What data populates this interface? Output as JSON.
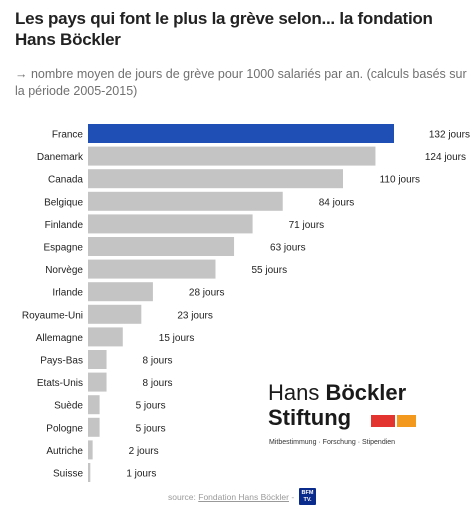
{
  "header": {
    "title": "Les pays qui font le plus la grève selon... la fondation Hans Böckler",
    "subtitle": "→ nombre moyen de jours de grève pour 1000 salariés par an. (calculs basés sur la période 2005-2015)"
  },
  "colors": {
    "highlight_bar": "#1f4fb4",
    "bar": "#c4c4c4",
    "logo_red": "#e3342f",
    "logo_orange": "#f39a1e",
    "bfm_blue": "#0a2a8c"
  },
  "chart_data": {
    "type": "bar",
    "orientation": "horizontal",
    "title": "Les pays qui font le plus la grève selon... la fondation Hans Böckler",
    "categories": [
      "France",
      "Danemark",
      "Canada",
      "Belgique",
      "Finlande",
      "Espagne",
      "Norvège",
      "Irlande",
      "Royaume-Uni",
      "Allemagne",
      "Pays-Bas",
      "Etats-Unis",
      "Suède",
      "Pologne",
      "Autriche",
      "Suisse"
    ],
    "values": [
      132,
      124,
      110,
      84,
      71,
      63,
      55,
      28,
      23,
      15,
      8,
      8,
      5,
      5,
      2,
      1
    ],
    "value_labels": [
      "132 jours",
      "124 jours",
      "110 jours",
      "84 jours",
      "71 jours",
      "63 jours",
      "55 jours",
      "28 jours",
      "23 jours",
      "15 jours",
      "8 jours",
      "8 jours",
      "5 jours",
      "5 jours",
      "2 jours",
      "1 jours"
    ],
    "highlighted_category": "France",
    "xlim": [
      0,
      132
    ],
    "grid": false,
    "legend": "none"
  },
  "logo": {
    "line1_a": "Hans",
    "line1_b": "Böckler",
    "line2": "Stiftung",
    "tagline": "Mitbestimmung · Forschung · Stipendien"
  },
  "footer": {
    "source_prefix": "source:",
    "source_link": "Fondation Hans Böckler",
    "separator": "-",
    "brand_line1": "BFM",
    "brand_line2": "TV."
  }
}
